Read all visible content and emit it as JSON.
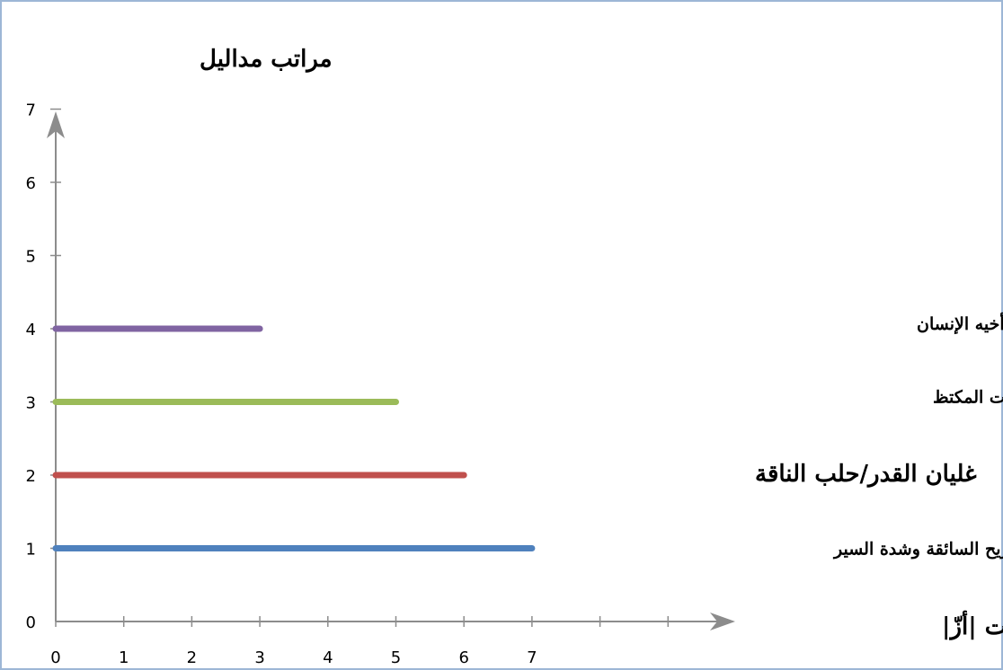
{
  "chart_data": {
    "type": "line",
    "title": "",
    "ylabel": "مراتب مداليل",
    "xlabel": "عدد سمات |أزّ|",
    "xlim": [
      0,
      7
    ],
    "ylim": [
      0,
      7
    ],
    "x_ticks": [
      0,
      1,
      2,
      3,
      4,
      5,
      6,
      7
    ],
    "y_ticks": [
      0,
      1,
      2,
      3,
      4,
      5,
      6,
      7
    ],
    "grid": false,
    "series": [
      {
        "name": "الريح السائقة وشدة السير",
        "color": "#4f81bd",
        "points": [
          [
            0,
            1
          ],
          [
            7,
            1
          ]
        ]
      },
      {
        "name": "غليان القدر/حلب الناقة",
        "color": "#c0504d",
        "points": [
          [
            0,
            2
          ],
          [
            6,
            2
          ]
        ]
      },
      {
        "name": "صوت جوف الانسان/ الليلة الباردة/ البرد الشديد/ البيت المكتظ",
        "color": "#9bbb59",
        "points": [
          [
            0,
            3
          ],
          [
            5,
            3
          ]
        ]
      },
      {
        "name": "صوت الرعد/ تحريض الشيطان للإنسان/ احتيال الإنسان على أخيه الإنسان",
        "color": "#8064a2",
        "points": [
          [
            0,
            4
          ],
          [
            3,
            4
          ]
        ]
      }
    ]
  }
}
